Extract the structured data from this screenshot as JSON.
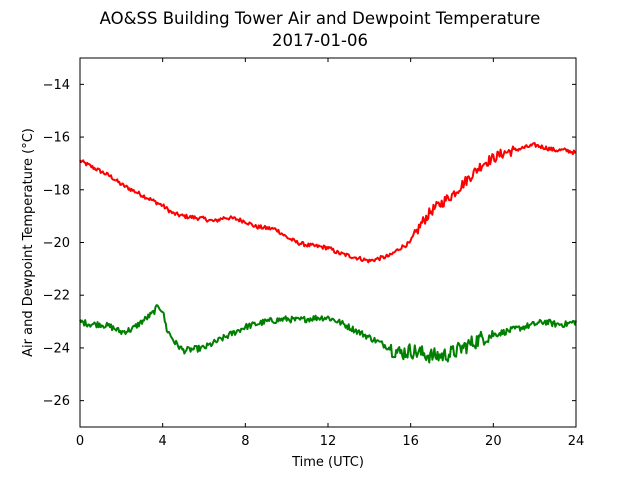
{
  "chart_data": {
    "type": "line",
    "title": "AO&SS Building Tower Air and Dewpoint Temperature",
    "subtitle": "2017-01-06",
    "xlabel": "Time (UTC)",
    "ylabel": "Air and Dewpoint Temperature (°C)",
    "xlim": [
      0,
      24
    ],
    "ylim": [
      -27,
      -13
    ],
    "x_ticks": [
      0,
      4,
      8,
      12,
      16,
      20,
      24
    ],
    "y_ticks": [
      -26,
      -24,
      -22,
      -20,
      -18,
      -16,
      -14
    ],
    "grid": false,
    "legend": "none",
    "series": [
      {
        "color": "#ff0000",
        "x": [
          0,
          0.5,
          1,
          1.5,
          2,
          2.5,
          3,
          3.5,
          4,
          4.5,
          5,
          5.5,
          6,
          6.5,
          7,
          7.5,
          8,
          8.5,
          9,
          9.5,
          10,
          10.5,
          11,
          11.5,
          12,
          12.5,
          13,
          13.5,
          14,
          14.5,
          15,
          15.5,
          16,
          16.5,
          17,
          17.5,
          18,
          18.5,
          19,
          19.5,
          20,
          20.5,
          21,
          21.5,
          22,
          22.5,
          23,
          23.5,
          24
        ],
        "y": [
          -16.9,
          -17.1,
          -17.3,
          -17.5,
          -17.8,
          -18.0,
          -18.2,
          -18.4,
          -18.6,
          -18.9,
          -19.0,
          -19.05,
          -19.1,
          -19.2,
          -19.05,
          -19.1,
          -19.2,
          -19.4,
          -19.45,
          -19.5,
          -19.8,
          -20.0,
          -20.1,
          -20.15,
          -20.2,
          -20.4,
          -20.5,
          -20.6,
          -20.7,
          -20.6,
          -20.5,
          -20.2,
          -20.0,
          -19.3,
          -18.8,
          -18.5,
          -18.2,
          -17.8,
          -17.4,
          -17.0,
          -16.8,
          -16.6,
          -16.5,
          -16.4,
          -16.3,
          -16.4,
          -16.5,
          -16.5,
          -16.6
        ],
        "noise": 0.08
      },
      {
        "color": "#008000",
        "x": [
          0,
          0.5,
          1,
          1.5,
          2,
          2.5,
          3,
          3.5,
          3.8,
          4,
          4.2,
          4.6,
          5,
          5.5,
          6,
          6.5,
          7,
          7.5,
          8,
          8.5,
          9,
          9.5,
          10,
          10.5,
          11,
          11.5,
          12,
          12.5,
          13,
          13.5,
          14,
          14.5,
          15,
          15.5,
          16,
          16.5,
          17,
          17.5,
          18,
          18.5,
          19,
          19.5,
          20,
          20.5,
          21,
          21.5,
          22,
          22.5,
          23,
          23.5,
          24
        ],
        "y": [
          -23.0,
          -23.1,
          -23.1,
          -23.2,
          -23.4,
          -23.3,
          -23.0,
          -22.7,
          -22.4,
          -22.6,
          -23.3,
          -23.8,
          -24.1,
          -24.05,
          -24.0,
          -23.8,
          -23.6,
          -23.4,
          -23.2,
          -23.1,
          -23.0,
          -22.95,
          -22.9,
          -22.95,
          -22.9,
          -22.85,
          -22.85,
          -23.0,
          -23.2,
          -23.4,
          -23.6,
          -23.8,
          -24.0,
          -24.2,
          -24.1,
          -24.2,
          -24.3,
          -24.3,
          -24.2,
          -24.0,
          -23.8,
          -23.6,
          -23.5,
          -23.4,
          -23.3,
          -23.2,
          -23.1,
          -23.0,
          -23.1,
          -23.1,
          -23.0
        ],
        "noise": 0.12
      }
    ]
  }
}
